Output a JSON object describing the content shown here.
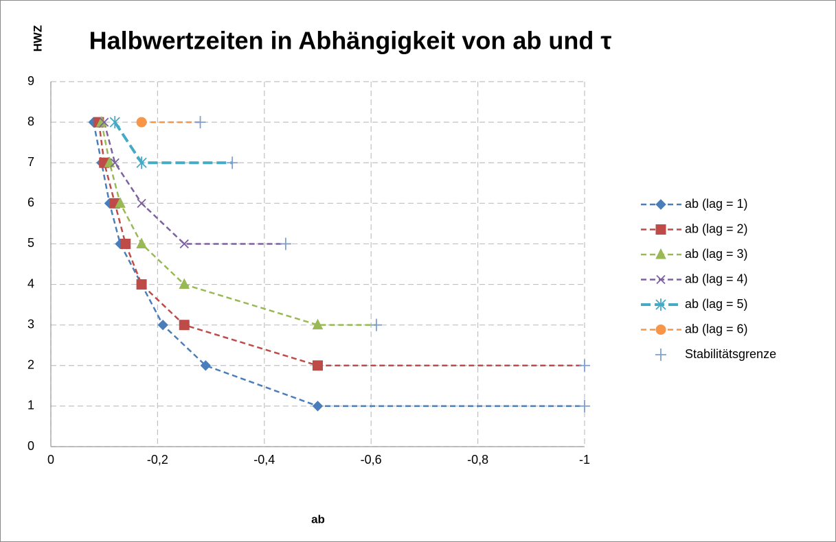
{
  "chart_data": {
    "type": "line",
    "title": "Halbwertzeiten in Abhängigkeit von ab und τ",
    "x_label": "ab",
    "y_label": "HWZ",
    "xlim": [
      0,
      -1
    ],
    "ylim": [
      0,
      9
    ],
    "xticks": [
      0,
      {
        "value": -0.2,
        "label": "-0,2"
      },
      {
        "value": -0.4,
        "label": "-0,4"
      },
      {
        "value": -0.6,
        "label": "-0,6"
      },
      {
        "value": -0.8,
        "label": "-0,8"
      },
      -1
    ],
    "yticks": [
      0,
      1,
      2,
      3,
      4,
      5,
      6,
      7,
      8,
      9
    ],
    "grid": true,
    "legend": "right",
    "series": [
      {
        "name": "ab (lag = 1)",
        "color": "#4a7ebb",
        "marker": "diamond",
        "width": 2.5,
        "x": [
          -0.08,
          -0.095,
          -0.11,
          -0.13,
          -0.17,
          -0.21,
          -0.29,
          -0.5
        ],
        "values": [
          8,
          7,
          6,
          5,
          4,
          3,
          2,
          1
        ]
      },
      {
        "name": "ab (lag = 2)",
        "color": "#be4b48",
        "marker": "square",
        "width": 2.5,
        "x": [
          -0.09,
          -0.1,
          -0.12,
          -0.14,
          -0.17,
          -0.25,
          -0.5
        ],
        "values": [
          8,
          7,
          6,
          5,
          4,
          3,
          2
        ]
      },
      {
        "name": "ab (lag = 3)",
        "color": "#98b954",
        "marker": "triangle",
        "width": 2.5,
        "x": [
          -0.095,
          -0.11,
          -0.13,
          -0.17,
          -0.25,
          -0.5
        ],
        "values": [
          8,
          7,
          6,
          5,
          4,
          3
        ]
      },
      {
        "name": "ab (lag = 4)",
        "color": "#7d60a0",
        "marker": "x",
        "width": 2.5,
        "x": [
          -0.1,
          -0.12,
          -0.17,
          -0.25
        ],
        "values": [
          8,
          7,
          6,
          5
        ]
      },
      {
        "name": "ab (lag = 5)",
        "color": "#46aac5",
        "marker": "star",
        "width": 4,
        "x": [
          -0.12,
          -0.17
        ],
        "values": [
          8,
          7
        ]
      },
      {
        "name": "ab (lag = 6)",
        "color": "#f79646",
        "marker": "circle",
        "width": 2.5,
        "x": [
          -0.17
        ],
        "values": [
          8
        ]
      },
      {
        "name": "Stabilitätsgrenze",
        "color": "#7f9fcf",
        "marker": "plus",
        "line": false,
        "x": [
          -1,
          -1,
          -0.61,
          -0.44,
          -0.34,
          -0.28
        ],
        "values": [
          1,
          2,
          3,
          5,
          7,
          8
        ]
      }
    ]
  }
}
